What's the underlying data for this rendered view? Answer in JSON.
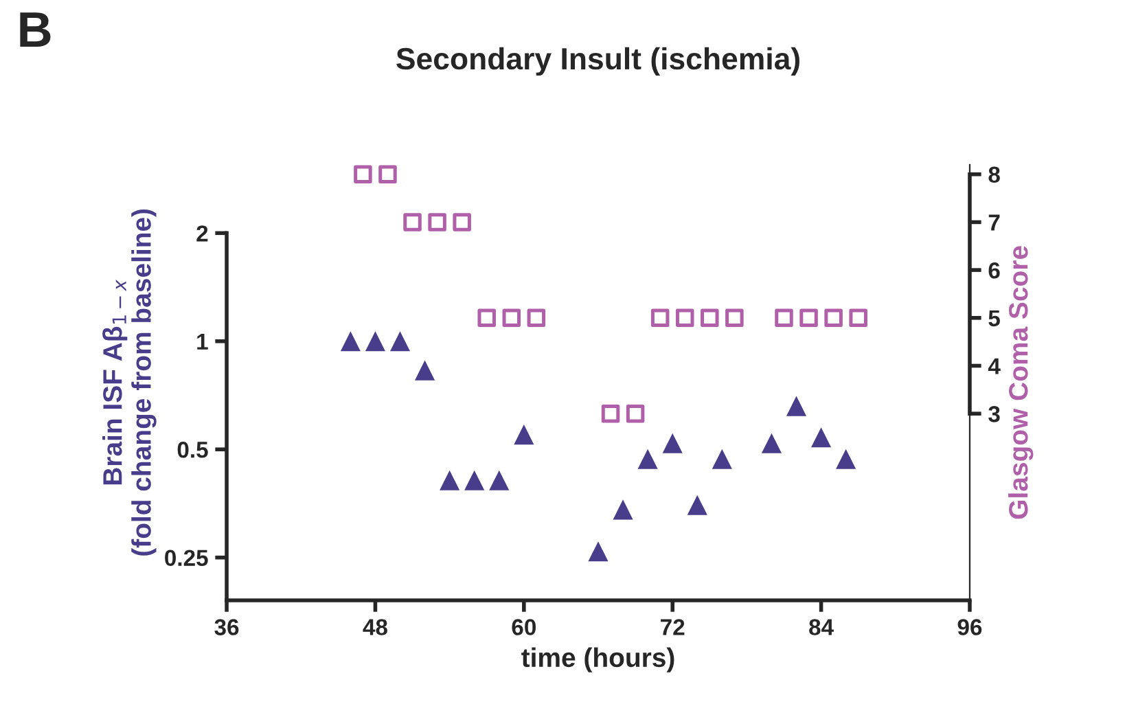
{
  "chart_data": {
    "type": "scatter",
    "title": "Secondary Insult (ischemia)",
    "xlabel": "time (hours)",
    "ylabel": "Brain ISF Aβ$_{1−x}$\n(fold change from baseline)",
    "y2label": "Glasgow Coma Score",
    "annotations": [
      "B"
    ],
    "log": "y",
    "grid": false,
    "legend": false,
    "xlim": [
      36,
      96
    ],
    "xticks": [
      36,
      48,
      60,
      72,
      84,
      96
    ],
    "ylim": [
      0.19,
      3.1
    ],
    "yticks": [
      0.25,
      0.5,
      1,
      2
    ],
    "y2lim": [
      -0.9,
      8.2
    ],
    "y2ticks": [
      3,
      4,
      5,
      6,
      7,
      8
    ],
    "series": [
      {
        "color": "#483d8b",
        "marker": "triangle",
        "x": [
          46,
          48,
          50,
          52,
          54,
          56,
          58,
          60,
          66,
          68,
          70,
          72,
          74,
          76,
          80,
          82,
          84,
          86
        ],
        "values": [
          1.0,
          1.0,
          1.0,
          0.83,
          0.41,
          0.41,
          0.41,
          0.55,
          0.26,
          0.34,
          0.47,
          0.52,
          0.35,
          0.47,
          0.52,
          0.66,
          0.54,
          0.47
        ]
      },
      {
        "color": "#b060a8",
        "marker": "square",
        "axis": "y2",
        "x": [
          47,
          49,
          51,
          53,
          55,
          57,
          59,
          61,
          67,
          69,
          71,
          73,
          75,
          77,
          81,
          83,
          85,
          87
        ],
        "values": [
          8,
          8,
          7,
          7,
          7,
          5,
          5,
          5,
          3,
          3,
          5,
          5,
          5,
          5,
          5,
          5,
          5,
          5
        ]
      }
    ]
  }
}
